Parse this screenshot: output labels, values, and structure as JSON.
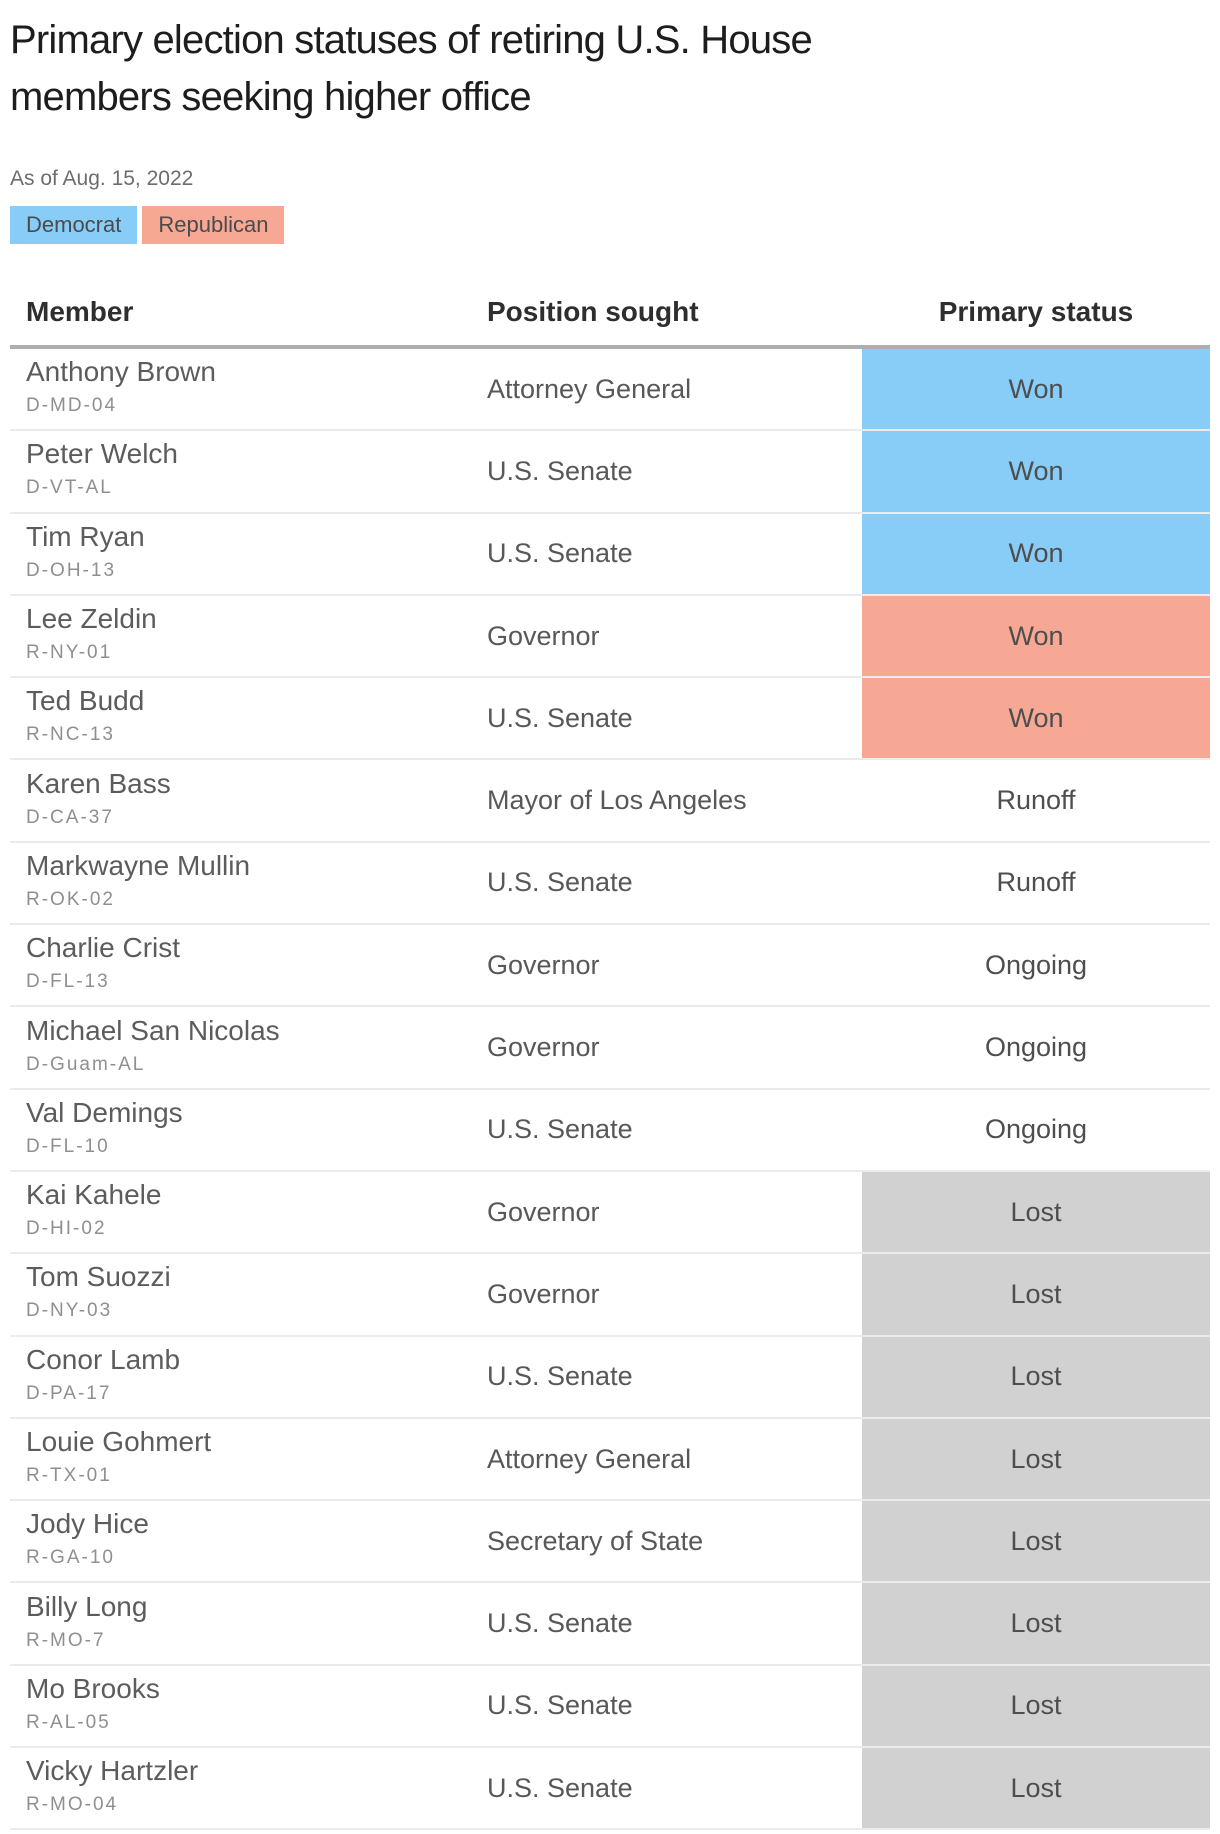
{
  "title": "Primary election statuses of retiring U.S. House members seeking higher office",
  "title_lines": [
    "Primary election statuses of retiring U.S. House",
    "members seeking higher office"
  ],
  "subtitle": "As of Aug. 15, 2022",
  "legend": {
    "items": [
      {
        "label": "Democrat",
        "party": "democrat"
      },
      {
        "label": "Republican",
        "party": "republican"
      }
    ]
  },
  "colors": {
    "democrat": "#88cdf8",
    "republican": "#f6a895",
    "lost": "#d1d1d1",
    "none": "transparent"
  },
  "table": {
    "columns": [
      "Member",
      "Position sought",
      "Primary status"
    ],
    "rows": [
      {
        "member": "Anthony Brown",
        "district": "D-MD-04",
        "position": "Attorney General",
        "status": "Won",
        "fill": "democrat"
      },
      {
        "member": "Peter Welch",
        "district": "D-VT-AL",
        "position": "U.S. Senate",
        "status": "Won",
        "fill": "democrat"
      },
      {
        "member": "Tim Ryan",
        "district": "D-OH-13",
        "position": "U.S. Senate",
        "status": "Won",
        "fill": "democrat"
      },
      {
        "member": "Lee Zeldin",
        "district": "R-NY-01",
        "position": "Governor",
        "status": "Won",
        "fill": "republican"
      },
      {
        "member": "Ted Budd",
        "district": "R-NC-13",
        "position": "U.S. Senate",
        "status": "Won",
        "fill": "republican"
      },
      {
        "member": "Karen Bass",
        "district": "D-CA-37",
        "position": "Mayor of Los Angeles",
        "status": "Runoff",
        "fill": "none"
      },
      {
        "member": "Markwayne Mullin",
        "district": "R-OK-02",
        "position": "U.S. Senate",
        "status": "Runoff",
        "fill": "none"
      },
      {
        "member": "Charlie Crist",
        "district": "D-FL-13",
        "position": "Governor",
        "status": "Ongoing",
        "fill": "none"
      },
      {
        "member": "Michael San Nicolas",
        "district": "D-Guam-AL",
        "position": "Governor",
        "status": "Ongoing",
        "fill": "none"
      },
      {
        "member": "Val Demings",
        "district": "D-FL-10",
        "position": "U.S. Senate",
        "status": "Ongoing",
        "fill": "none"
      },
      {
        "member": "Kai Kahele",
        "district": "D-HI-02",
        "position": "Governor",
        "status": "Lost",
        "fill": "lost"
      },
      {
        "member": "Tom Suozzi",
        "district": "D-NY-03",
        "position": "Governor",
        "status": "Lost",
        "fill": "lost"
      },
      {
        "member": "Conor Lamb",
        "district": "D-PA-17",
        "position": "U.S. Senate",
        "status": "Lost",
        "fill": "lost"
      },
      {
        "member": "Louie Gohmert",
        "district": "R-TX-01",
        "position": "Attorney General",
        "status": "Lost",
        "fill": "lost"
      },
      {
        "member": "Jody Hice",
        "district": "R-GA-10",
        "position": "Secretary of State",
        "status": "Lost",
        "fill": "lost"
      },
      {
        "member": "Billy Long",
        "district": "R-MO-7",
        "position": "U.S. Senate",
        "status": "Lost",
        "fill": "lost"
      },
      {
        "member": "Mo Brooks",
        "district": "R-AL-05",
        "position": "U.S. Senate",
        "status": "Lost",
        "fill": "lost"
      },
      {
        "member": "Vicky Hartzler",
        "district": "R-MO-04",
        "position": "U.S. Senate",
        "status": "Lost",
        "fill": "lost"
      }
    ]
  },
  "chart_data": {
    "type": "table",
    "title": "Primary election statuses of retiring U.S. House members seeking higher office",
    "subtitle": "As of Aug. 15, 2022",
    "legend": [
      "Democrat",
      "Republican"
    ],
    "columns": [
      "Member",
      "Position sought",
      "Primary status"
    ],
    "rows": [
      [
        "Anthony Brown (D-MD-04)",
        "Attorney General",
        "Won"
      ],
      [
        "Peter Welch (D-VT-AL)",
        "U.S. Senate",
        "Won"
      ],
      [
        "Tim Ryan (D-OH-13)",
        "U.S. Senate",
        "Won"
      ],
      [
        "Lee Zeldin (R-NY-01)",
        "Governor",
        "Won"
      ],
      [
        "Ted Budd (R-NC-13)",
        "U.S. Senate",
        "Won"
      ],
      [
        "Karen Bass (D-CA-37)",
        "Mayor of Los Angeles",
        "Runoff"
      ],
      [
        "Markwayne Mullin (R-OK-02)",
        "U.S. Senate",
        "Runoff"
      ],
      [
        "Charlie Crist (D-FL-13)",
        "Governor",
        "Ongoing"
      ],
      [
        "Michael San Nicolas (D-Guam-AL)",
        "Governor",
        "Ongoing"
      ],
      [
        "Val Demings (D-FL-10)",
        "U.S. Senate",
        "Ongoing"
      ],
      [
        "Kai Kahele (D-HI-02)",
        "Governor",
        "Lost"
      ],
      [
        "Tom Suozzi (D-NY-03)",
        "Governor",
        "Lost"
      ],
      [
        "Conor Lamb (D-PA-17)",
        "U.S. Senate",
        "Lost"
      ],
      [
        "Louie Gohmert (R-TX-01)",
        "Attorney General",
        "Lost"
      ],
      [
        "Jody Hice (R-GA-10)",
        "Secretary of State",
        "Lost"
      ],
      [
        "Billy Long (R-MO-7)",
        "U.S. Senate",
        "Lost"
      ],
      [
        "Mo Brooks (R-AL-05)",
        "U.S. Senate",
        "Lost"
      ],
      [
        "Vicky Hartzler (R-MO-04)",
        "U.S. Senate",
        "Lost"
      ]
    ]
  }
}
